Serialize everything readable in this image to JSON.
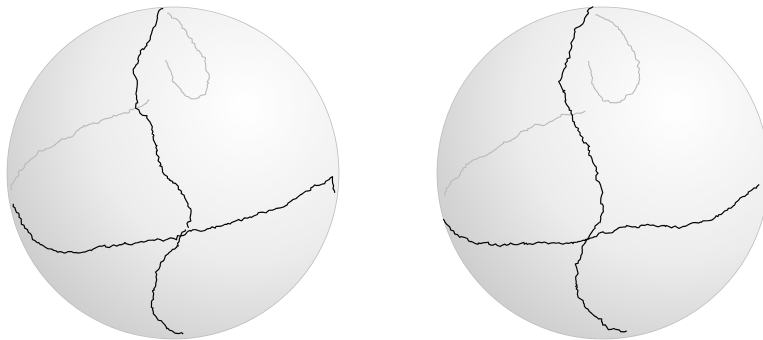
{
  "figure": {
    "panels": [
      {
        "id": "left",
        "description_shown": ""
      },
      {
        "id": "right",
        "description_shown": ""
      }
    ],
    "colors": {
      "sphere_light": "#ffffff",
      "sphere_mid": "#ececec",
      "sphere_dark": "#c9c9c9",
      "front_path": "#000000",
      "back_path": "#b9b9b9",
      "outline": "#bdbdbd"
    }
  }
}
